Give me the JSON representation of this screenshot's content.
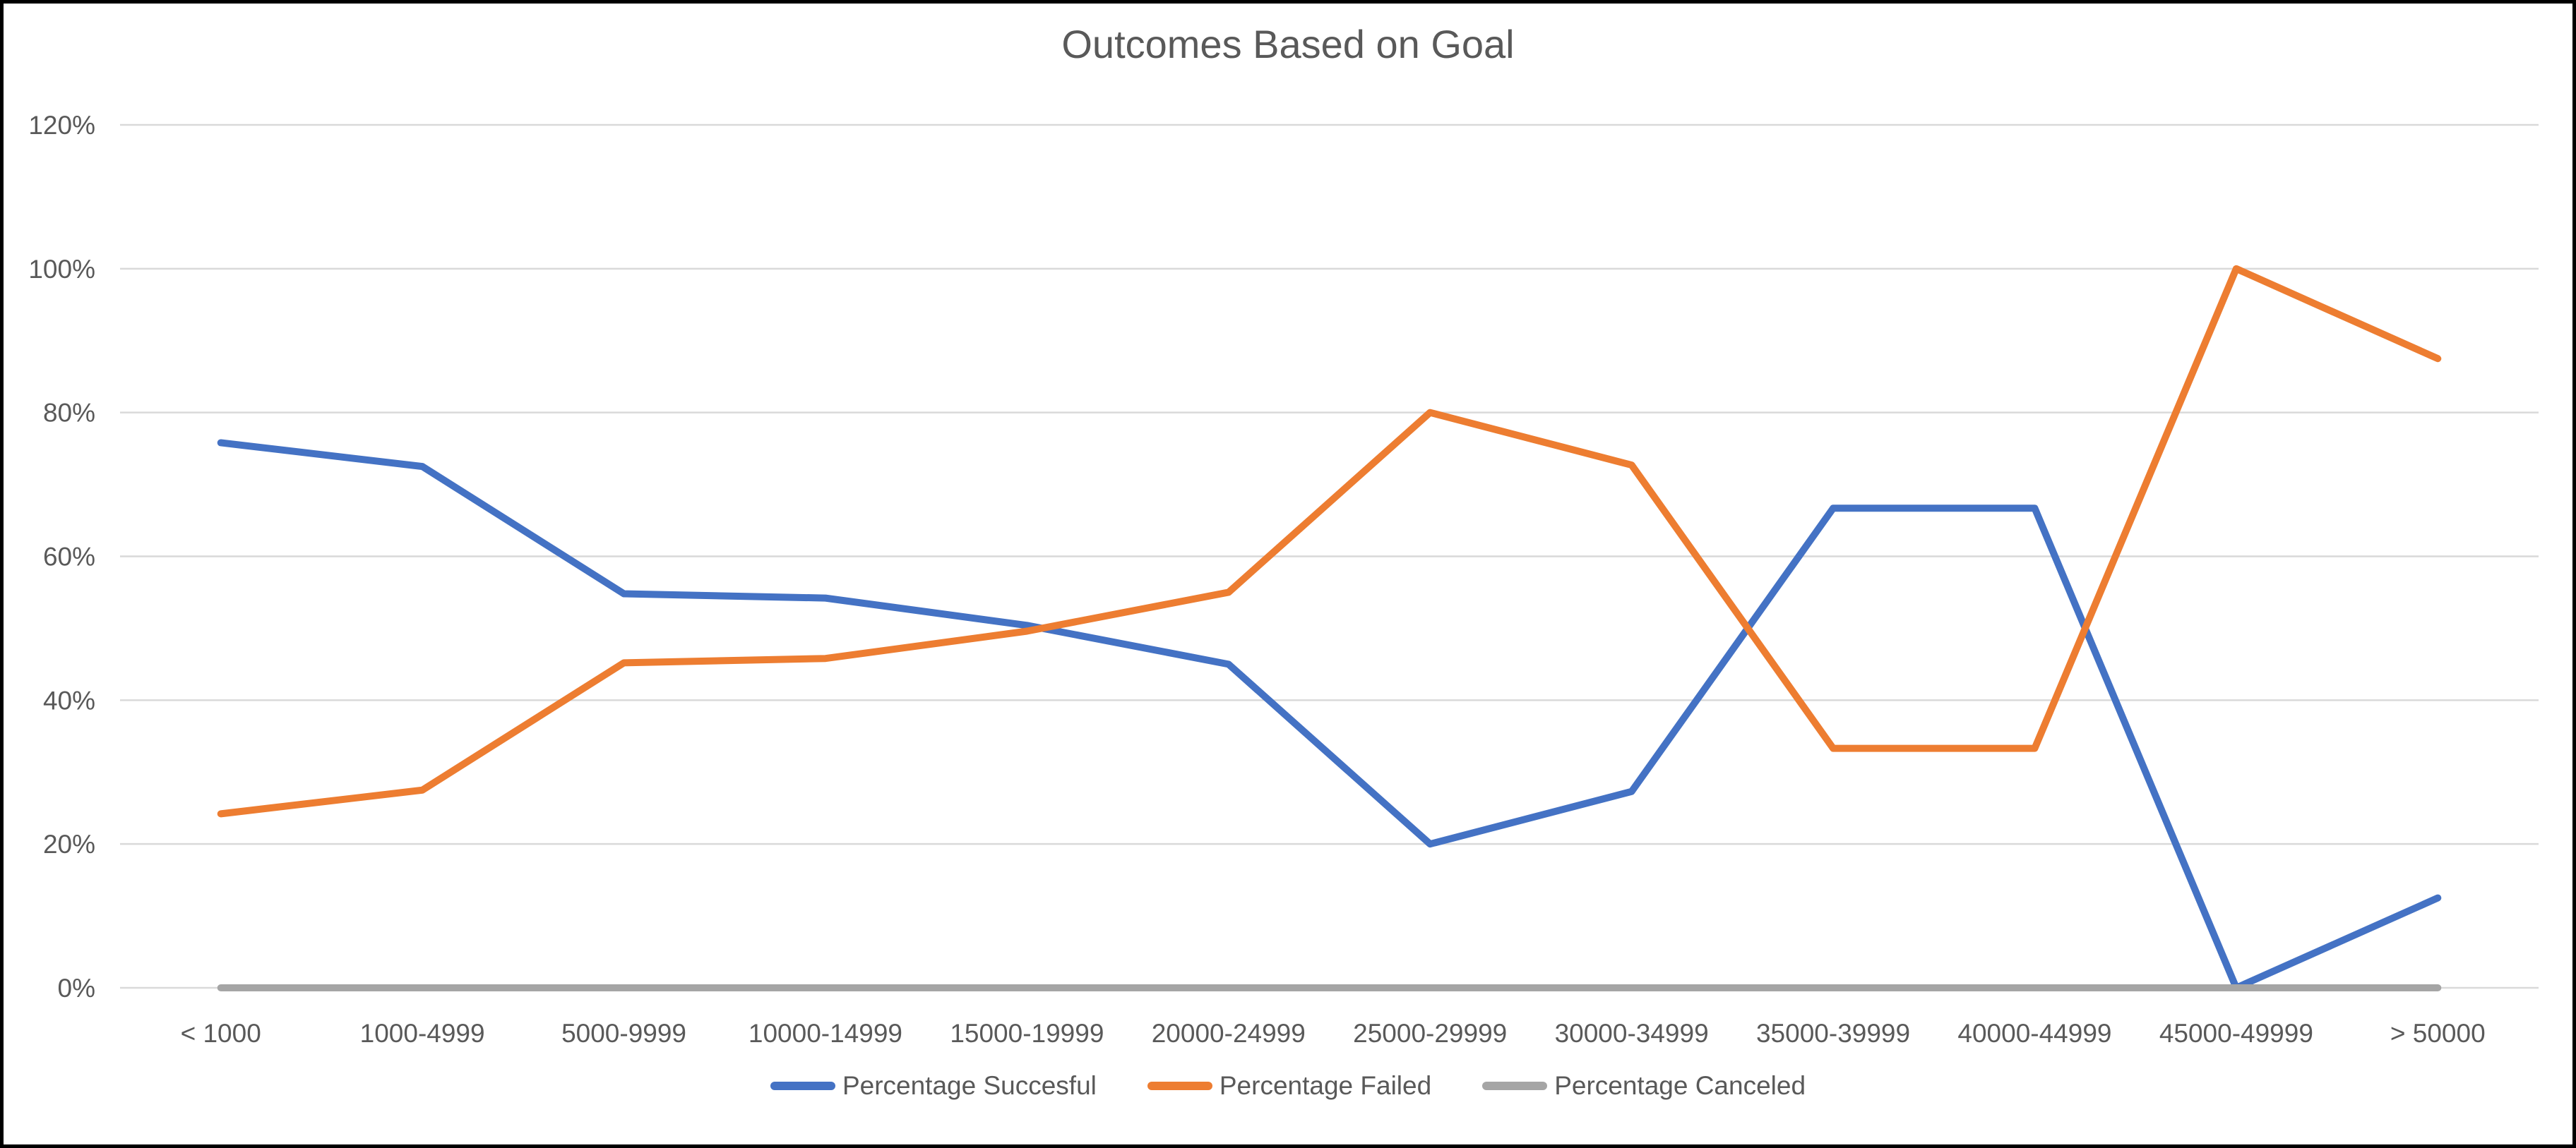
{
  "chart_data": {
    "type": "line",
    "title": "Outcomes Based on Goal",
    "categories": [
      "< 1000",
      "1000-4999",
      "5000-9999",
      "10000-14999",
      "15000-19999",
      "20000-24999",
      "25000-29999",
      "30000-34999",
      "35000-39999",
      "40000-44999",
      "45000-49999",
      "> 50000"
    ],
    "series": [
      {
        "name": "Percentage Succesful",
        "color": "#4472C4",
        "values": [
          75.8,
          72.5,
          54.8,
          54.2,
          50.4,
          45,
          20,
          27.3,
          66.7,
          66.7,
          0,
          12.5
        ]
      },
      {
        "name": "Percentage Failed",
        "color": "#ED7D31",
        "values": [
          24.2,
          27.5,
          45.2,
          45.8,
          49.6,
          55,
          80,
          72.7,
          33.3,
          33.3,
          100,
          87.5
        ]
      },
      {
        "name": "Percentage Canceled",
        "color": "#A5A5A5",
        "values": [
          0,
          0,
          0,
          0,
          0,
          0,
          0,
          0,
          0,
          0,
          0,
          0
        ]
      }
    ],
    "xlabel": "",
    "ylabel": "",
    "ylim": [
      0,
      120
    ],
    "y_step": 20,
    "y_tick_labels": [
      "0%",
      "20%",
      "40%",
      "60%",
      "80%",
      "100%",
      "120%"
    ],
    "grid": true,
    "legend_position": "bottom",
    "styles": {
      "gridline_color": "#D9D9D9",
      "axis_line_color": "#D9D9D9",
      "text_color": "#595959",
      "background_color": "#FFFFFF",
      "border_color": "#000000",
      "line_width": 10,
      "tick_font_size": 37
    }
  }
}
